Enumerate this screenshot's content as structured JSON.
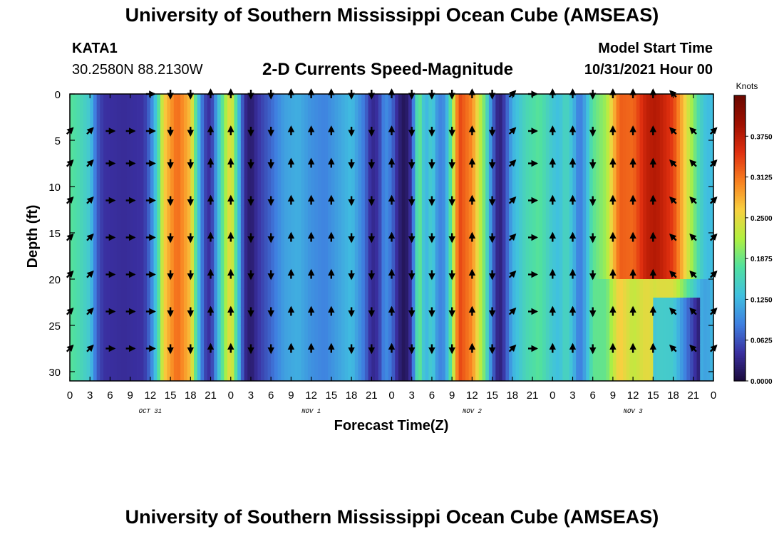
{
  "page": {
    "title_top": "University of Southern Mississippi Ocean Cube (AMSEAS)",
    "title_bottom": "University of Southern Mississippi Ocean Cube (AMSEAS)",
    "station_id": "KATA1",
    "station_coords": "30.2580N  88.2130W",
    "subtitle": "2-D Currents Speed-Magnitude",
    "model_start_label": "Model Start Time",
    "model_start_value": "10/31/2021 Hour 00"
  },
  "chart_data": {
    "type": "heatmap",
    "title": "2-D Currents Speed-Magnitude",
    "xlabel": "Forecast Time(Z)",
    "ylabel": "Depth (ft)",
    "x_ticks": [
      "0",
      "3",
      "6",
      "9",
      "12",
      "15",
      "18",
      "21",
      "0",
      "3",
      "6",
      "9",
      "12",
      "15",
      "18",
      "21",
      "0",
      "3",
      "6",
      "9",
      "12",
      "15",
      "18",
      "21",
      "0",
      "3",
      "6",
      "9",
      "12",
      "15",
      "18",
      "21",
      "0"
    ],
    "x_range_hours": [
      0,
      96
    ],
    "day_labels": [
      {
        "label": "OCT 31",
        "hour": 12
      },
      {
        "label": "NOV 1",
        "hour": 36
      },
      {
        "label": "NOV 2",
        "hour": 60
      },
      {
        "label": "NOV 3",
        "hour": 84
      }
    ],
    "y_ticks": [
      0,
      5,
      10,
      15,
      20,
      25,
      30
    ],
    "y_range": [
      0,
      31
    ],
    "y_inverted": true,
    "colorbar": {
      "unit": "Knots",
      "range": [
        0,
        0.4375
      ],
      "tick_labels": [
        "0.0000",
        "0.0625",
        "0.1250",
        "0.1875",
        "0.2500",
        "0.3125",
        "0.3750"
      ],
      "tick_values": [
        0,
        0.0625,
        0.125,
        0.1875,
        0.25,
        0.3125,
        0.375
      ],
      "colors": [
        "#1a0a3a",
        "#3a2fa0",
        "#3f7fe0",
        "#40c0e0",
        "#50e0a0",
        "#b0f040",
        "#f8d040",
        "#f88020",
        "#e03010",
        "#a01000",
        "#6a0800"
      ]
    },
    "arrow_hours": [
      0,
      3,
      6,
      9,
      12,
      15,
      18,
      21,
      24,
      27,
      30,
      33,
      36,
      39,
      42,
      45,
      48,
      51,
      54,
      57,
      60,
      63,
      66,
      69,
      72,
      75,
      78,
      81,
      84,
      87,
      90,
      93,
      96
    ],
    "arrow_depths": [
      0,
      4,
      7.5,
      11.5,
      15.5,
      19.5,
      23.5,
      27.5
    ],
    "speed_profile_by_hour": [
      [
        0,
        0.18
      ],
      [
        1,
        0.17
      ],
      [
        3,
        0.14
      ],
      [
        4,
        0.07
      ],
      [
        5,
        0.045
      ],
      [
        8,
        0.04
      ],
      [
        11,
        0.045
      ],
      [
        12,
        0.08
      ],
      [
        13,
        0.15
      ],
      [
        14,
        0.26
      ],
      [
        16,
        0.32
      ],
      [
        18,
        0.27
      ],
      [
        19,
        0.15
      ],
      [
        20,
        0.06
      ],
      [
        21,
        0.04
      ],
      [
        22,
        0.12
      ],
      [
        23,
        0.2
      ],
      [
        24,
        0.26
      ],
      [
        25,
        0.15
      ],
      [
        26,
        0.04
      ],
      [
        27,
        0.02
      ],
      [
        28,
        0.045
      ],
      [
        30,
        0.075
      ],
      [
        32,
        0.11
      ],
      [
        34,
        0.12
      ],
      [
        36,
        0.1
      ],
      [
        38,
        0.09
      ],
      [
        40,
        0.11
      ],
      [
        42,
        0.13
      ],
      [
        44,
        0.08
      ],
      [
        45,
        0.035
      ],
      [
        46,
        0.045
      ],
      [
        47,
        0.1
      ],
      [
        48,
        0.08
      ],
      [
        49,
        0.03
      ],
      [
        50,
        0.01
      ],
      [
        51,
        0.05
      ],
      [
        52,
        0.2
      ],
      [
        53,
        0.12
      ],
      [
        54,
        0.15
      ],
      [
        55,
        0.09
      ],
      [
        56,
        0.1
      ],
      [
        57,
        0.2
      ],
      [
        58,
        0.34
      ],
      [
        60,
        0.3
      ],
      [
        62,
        0.18
      ],
      [
        63,
        0.08
      ],
      [
        64,
        0.02
      ],
      [
        65,
        0.06
      ],
      [
        66,
        0.12
      ],
      [
        68,
        0.16
      ],
      [
        70,
        0.18
      ],
      [
        72,
        0.14
      ],
      [
        73,
        0.13
      ],
      [
        74,
        0.16
      ],
      [
        75,
        0.13
      ],
      [
        76,
        0.08
      ],
      [
        77,
        0.12
      ],
      [
        78,
        0.18
      ],
      [
        80,
        0.2
      ],
      [
        82,
        0.3
      ],
      [
        84,
        0.28
      ],
      [
        86,
        0.32
      ],
      [
        88,
        0.32
      ],
      [
        90,
        0.3
      ],
      [
        92,
        0.22
      ],
      [
        94,
        0.14
      ],
      [
        95,
        0.12
      ],
      [
        96,
        0.13
      ]
    ],
    "arrow_direction_by_hour": [
      [
        0,
        "ne"
      ],
      [
        3,
        "ne"
      ],
      [
        6,
        "e"
      ],
      [
        9,
        "e"
      ],
      [
        12,
        "e"
      ],
      [
        15,
        "s"
      ],
      [
        18,
        "s"
      ],
      [
        21,
        "n"
      ],
      [
        24,
        "n"
      ],
      [
        27,
        "s"
      ],
      [
        30,
        "s"
      ],
      [
        33,
        "n"
      ],
      [
        36,
        "n"
      ],
      [
        39,
        "n"
      ],
      [
        42,
        "s"
      ],
      [
        45,
        "s"
      ],
      [
        48,
        "n"
      ],
      [
        51,
        "s"
      ],
      [
        54,
        "s"
      ],
      [
        57,
        "s"
      ],
      [
        60,
        "n"
      ],
      [
        63,
        "s"
      ],
      [
        66,
        "ne"
      ],
      [
        69,
        "e"
      ],
      [
        72,
        "n"
      ],
      [
        75,
        "n"
      ],
      [
        78,
        "s"
      ],
      [
        81,
        "n"
      ],
      [
        84,
        "n"
      ],
      [
        87,
        "n"
      ],
      [
        90,
        "nw"
      ],
      [
        93,
        "nw"
      ],
      [
        96,
        "ne"
      ]
    ]
  }
}
